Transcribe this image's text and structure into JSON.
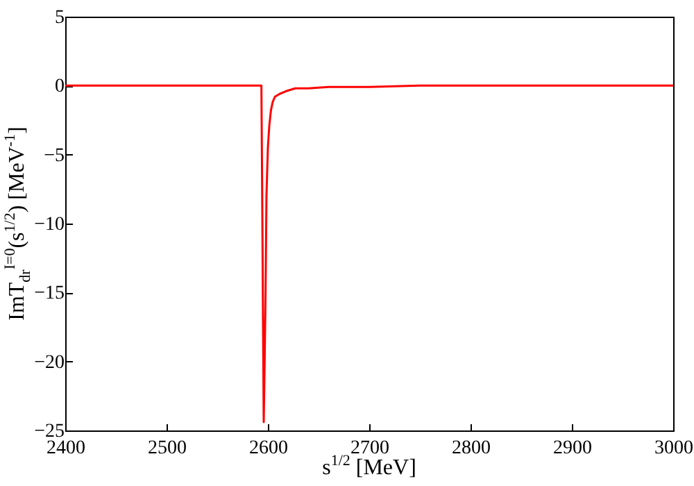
{
  "chart_data": {
    "type": "line",
    "xlabel": "s$^{1/2}$ [MeV]",
    "ylabel": "ImT$_{dr}$$^{I=0}$(s$^{1/2}$) [MeV$^{-1}$]",
    "x": [
      2400,
      2500,
      2593.6,
      2594.4,
      2595.2,
      2595.9,
      2596.8,
      2597.7,
      2598.6,
      2600,
      2601.4,
      2603,
      2604.7,
      2607,
      2611.6,
      2618,
      2627,
      2640,
      2660,
      2700,
      2750,
      2800,
      2900,
      3000
    ],
    "series": [
      {
        "color": "#ff0000",
        "values": [
          0,
          0,
          0,
          -8,
          -17,
          -24.4,
          -20,
          -15,
          -8,
          -4.5,
          -2.9,
          -1.8,
          -1.2,
          -0.8,
          -0.6,
          -0.4,
          -0.2,
          -0.2,
          -0.1,
          -0.1,
          0,
          0,
          0,
          0
        ]
      }
    ],
    "xlim": [
      2400,
      3000
    ],
    "xticks": [
      2400,
      2500,
      2600,
      2700,
      2800,
      2900,
      3000
    ],
    "ylim": [
      -25,
      5
    ],
    "yticks": [
      -25,
      -20,
      -15,
      -10,
      -5,
      0,
      5
    ],
    "grid": false,
    "line_style": "solid",
    "marker": "none"
  }
}
